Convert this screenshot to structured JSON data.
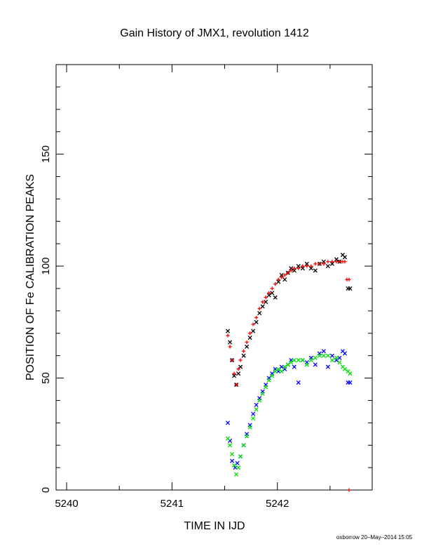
{
  "chart_data": {
    "type": "scatter",
    "title": "Gain History of JMX1, revolution 1412",
    "xlabel": "TIME IN IJD",
    "ylabel": "POSITION OF Fe CALIBRATION PEAKS",
    "xlim": [
      5239.9,
      5242.9
    ],
    "ylim": [
      0,
      190
    ],
    "x_ticks": [
      5240,
      5241,
      5242
    ],
    "y_ticks": [
      0,
      50,
      100,
      150
    ],
    "x_tick_labels": [
      "5240",
      "5241",
      "5242"
    ],
    "y_tick_labels": [
      "0",
      "50",
      "100",
      "150"
    ],
    "grid": false,
    "footer": "oxborrow 20–May–2014 15:05",
    "series": [
      {
        "color": "#000000",
        "marker": "x",
        "x": [
          5241.53,
          5241.55,
          5241.57,
          5241.59,
          5241.61,
          5241.63,
          5241.65,
          5241.68,
          5241.71,
          5241.74,
          5241.77,
          5241.8,
          5241.83,
          5241.86,
          5241.89,
          5241.92,
          5241.95,
          5241.98,
          5242.01,
          5242.04,
          5242.07,
          5242.1,
          5242.13,
          5242.16,
          5242.2,
          5242.24,
          5242.28,
          5242.32,
          5242.36,
          5242.4,
          5242.44,
          5242.48,
          5242.52,
          5242.56,
          5242.59,
          5242.62,
          5242.64,
          5242.67,
          5242.69
        ],
        "y": [
          71,
          66,
          58,
          51,
          47,
          52,
          55,
          60,
          64,
          68,
          71,
          75,
          79,
          82,
          84,
          87,
          88,
          86,
          93,
          96,
          94,
          97,
          99,
          98,
          100,
          99,
          101,
          99,
          98,
          101,
          102,
          100,
          101,
          103,
          102,
          105,
          104,
          90,
          90
        ]
      },
      {
        "color": "#ff0000",
        "marker": "+",
        "x": [
          5241.53,
          5241.55,
          5241.57,
          5241.59,
          5241.61,
          5241.63,
          5241.65,
          5241.68,
          5241.71,
          5241.74,
          5241.77,
          5241.8,
          5241.83,
          5241.86,
          5241.89,
          5241.92,
          5241.95,
          5241.98,
          5242.01,
          5242.04,
          5242.07,
          5242.1,
          5242.13,
          5242.16,
          5242.2,
          5242.24,
          5242.28,
          5242.32,
          5242.36,
          5242.4,
          5242.44,
          5242.48,
          5242.52,
          5242.56,
          5242.59,
          5242.62,
          5242.64,
          5242.66,
          5242.68,
          5242.68
        ],
        "y": [
          69,
          64,
          58,
          52,
          47,
          54,
          58,
          62,
          66,
          70,
          74,
          77,
          81,
          84,
          86,
          88,
          90,
          92,
          94,
          95,
          96,
          97,
          98,
          99,
          99,
          100,
          100,
          100,
          101,
          101,
          101,
          102,
          102,
          102,
          102,
          102,
          102,
          94,
          94,
          0
        ]
      },
      {
        "color": "#0000ff",
        "marker": "x",
        "x": [
          5241.53,
          5241.55,
          5241.57,
          5241.6,
          5241.62,
          5241.65,
          5241.68,
          5241.71,
          5241.74,
          5241.77,
          5241.8,
          5241.83,
          5241.86,
          5241.89,
          5241.92,
          5241.95,
          5241.98,
          5242.01,
          5242.04,
          5242.07,
          5242.1,
          5242.13,
          5242.16,
          5242.2,
          5242.24,
          5242.28,
          5242.32,
          5242.36,
          5242.4,
          5242.44,
          5242.48,
          5242.52,
          5242.56,
          5242.59,
          5242.62,
          5242.64,
          5242.67,
          5242.69
        ],
        "y": [
          30,
          22,
          13,
          10,
          12,
          15,
          20,
          25,
          29,
          34,
          38,
          41,
          44,
          47,
          50,
          52,
          54,
          53,
          55,
          54,
          56,
          58,
          55,
          48,
          58,
          57,
          59,
          56,
          61,
          62,
          55,
          60,
          58,
          59,
          62,
          61,
          48,
          48
        ]
      },
      {
        "color": "#00dd00",
        "marker": "x",
        "x": [
          5241.53,
          5241.55,
          5241.57,
          5241.59,
          5241.61,
          5241.63,
          5241.65,
          5241.68,
          5241.71,
          5241.74,
          5241.77,
          5241.8,
          5241.83,
          5241.86,
          5241.89,
          5241.92,
          5241.95,
          5241.98,
          5242.01,
          5242.04,
          5242.07,
          5242.1,
          5242.13,
          5242.16,
          5242.2,
          5242.24,
          5242.28,
          5242.32,
          5242.36,
          5242.4,
          5242.44,
          5242.48,
          5242.52,
          5242.56,
          5242.59,
          5242.62,
          5242.64,
          5242.67,
          5242.69
        ],
        "y": [
          23,
          20,
          16,
          11,
          7,
          10,
          15,
          20,
          24,
          28,
          32,
          36,
          40,
          43,
          46,
          49,
          51,
          53,
          54,
          53,
          55,
          56,
          57,
          58,
          58,
          58,
          56,
          58,
          59,
          60,
          60,
          60,
          58,
          59,
          57,
          55,
          54,
          53,
          52
        ]
      }
    ]
  }
}
